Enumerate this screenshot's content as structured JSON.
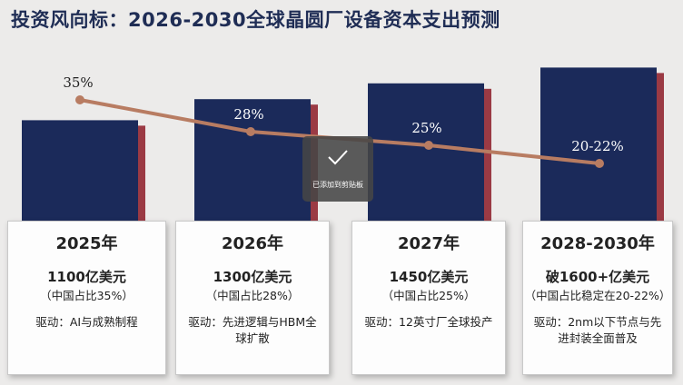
{
  "title": "投资风向标：2026-2030全球晶圆厂设备资本支出预测",
  "chart_data": {
    "type": "bar",
    "categories": [
      "2025年",
      "2026年",
      "2027年",
      "2028-2030年"
    ],
    "values": [
      1100,
      1300,
      1450,
      1600
    ],
    "unit": "亿美元",
    "line_series": {
      "values": [
        35,
        28,
        25,
        21
      ],
      "labels": [
        "35%",
        "28%",
        "25%",
        "20-22%"
      ]
    },
    "colors": {
      "bar": "#1b2a5a",
      "bar_shadow": "#9b3a44",
      "line": "#b87c62"
    }
  },
  "cards": [
    {
      "year": "2025年",
      "amount": "1100亿美元",
      "share": "（中国占比35%）",
      "driver": "驱动：AI与成熟制程"
    },
    {
      "year": "2026年",
      "amount": "1300亿美元",
      "share": "（中国占比28%）",
      "driver": "驱动：先进逻辑与HBM全球扩散"
    },
    {
      "year": "2027年",
      "amount": "1450亿美元",
      "share": "（中国占比25%）",
      "driver": "驱动：12英寸厂全球投产"
    },
    {
      "year": "2028-2030年",
      "amount": "破1600+亿美元",
      "share": "（中国占比稳定在20-22%）",
      "driver": "驱动：2nm以下节点与先进封装全面普及"
    }
  ],
  "toast": {
    "message": "已添加到剪贴板",
    "icon": "check-icon"
  }
}
